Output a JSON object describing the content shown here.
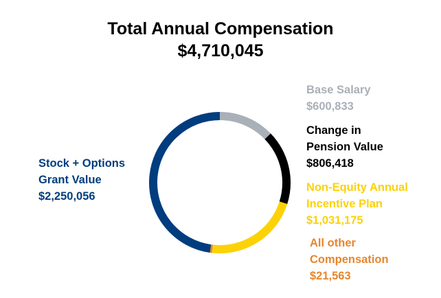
{
  "header": {
    "title": "Total Annual Compensation",
    "total": "$4,710,045"
  },
  "chart_data": {
    "type": "pie",
    "donut": true,
    "title": "Total Annual Compensation",
    "total": 4710045,
    "legend": "none",
    "slices": [
      {
        "name": "Base Salary",
        "value": 600833,
        "color": "#a9b0b7"
      },
      {
        "name": "Change in Pension Value",
        "value": 806418,
        "color": "#000000"
      },
      {
        "name": "Non-Equity Annual Incentive Plan",
        "value": 1031175,
        "color": "#fcd207"
      },
      {
        "name": "All other Compensation",
        "value": 21563,
        "color": "#e8862a"
      },
      {
        "name": "Stock + Options Grant Value",
        "value": 2250056,
        "color": "#003d7e"
      }
    ]
  },
  "labels": {
    "base": {
      "line1": "Base Salary",
      "value": "$600,833",
      "color": "#a9b0b7"
    },
    "pension": {
      "line1": "Change in",
      "line2": "Pension Value",
      "value": "$806,418",
      "color": "#000000"
    },
    "nonequity": {
      "line1": "Non-Equity Annual",
      "line2": "Incentive Plan",
      "value": "$1,031,175",
      "color": "#fcd207"
    },
    "other": {
      "line1": "All other",
      "line2": "Compensation",
      "value": "$21,563",
      "color": "#e8862a"
    },
    "stock": {
      "line1": "Stock + Options",
      "line2": "Grant Value",
      "value": "$2,250,056",
      "color": "#003d7e"
    }
  }
}
